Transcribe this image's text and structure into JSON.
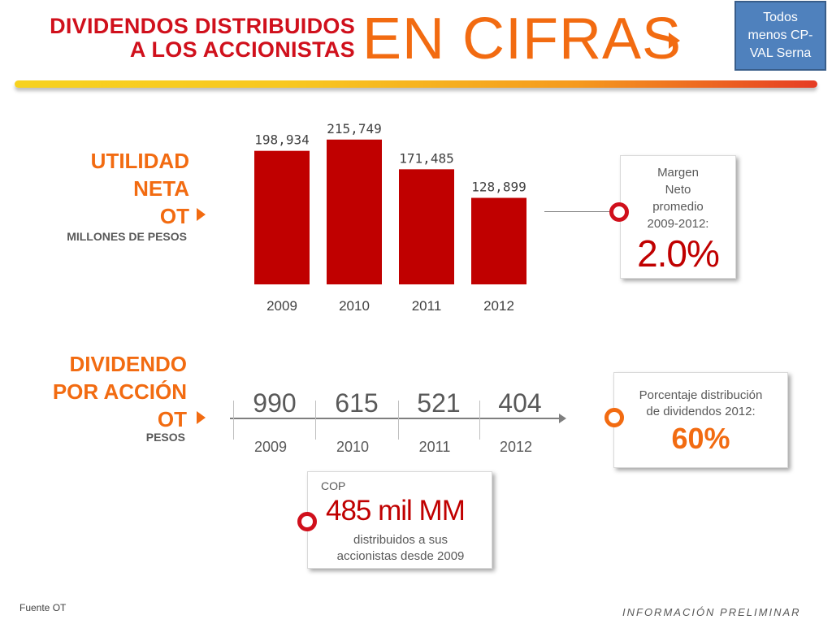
{
  "header": {
    "title_line1": "DIVIDENDOS DISTRIBUIDOS",
    "title_line2": "A LOS ACCIONISTAS",
    "title_big": "EN CIFRAS",
    "note_line1": "Todos",
    "note_line2": "menos CP-",
    "note_line3": "VAL Serna"
  },
  "utilidad": {
    "label_line1": "UTILIDAD",
    "label_line2": "NETA",
    "label_line3": "OT",
    "sublabel": "MILLONES DE PESOS"
  },
  "chart_data": {
    "type": "bar",
    "categories": [
      "2009",
      "2010",
      "2011",
      "2012"
    ],
    "values": [
      198934,
      215749,
      171485,
      128899
    ],
    "value_labels": [
      "198,934",
      "215,749",
      "171,485",
      "128,899"
    ],
    "title": "",
    "xlabel": "",
    "ylabel": "",
    "ylim": [
      0,
      230000
    ],
    "grid": false,
    "colors": {
      "bar": "#c00000"
    }
  },
  "margen": {
    "line1": "Margen",
    "line2": "Neto",
    "line3": "promedio",
    "line4": "2009-2012:",
    "value": "2.0%"
  },
  "dividendo": {
    "label_line1": "DIVIDENDO",
    "label_line2": "POR ACCIÓN",
    "label_line3": "OT",
    "sublabel": "PESOS",
    "items": [
      {
        "value": "990",
        "year": "2009"
      },
      {
        "value": "615",
        "year": "2010"
      },
      {
        "value": "521",
        "year": "2011"
      },
      {
        "value": "404",
        "year": "2012"
      }
    ]
  },
  "distribucion": {
    "line1": "Porcentaje distribución",
    "line2": "de dividendos 2012:",
    "value": "60%"
  },
  "cop_box": {
    "currency": "COP",
    "amount": "485 mil MM",
    "line1": "distribuidos a sus",
    "line2": "accionistas desde 2009"
  },
  "footer": {
    "source": "Fuente OT",
    "prelim": "INFORMACIÓN PRELIMINAR"
  },
  "colors": {
    "red": "#c00000",
    "orange": "#f26b11",
    "title_red": "#d0101c",
    "note_blue": "#4f81bd"
  }
}
